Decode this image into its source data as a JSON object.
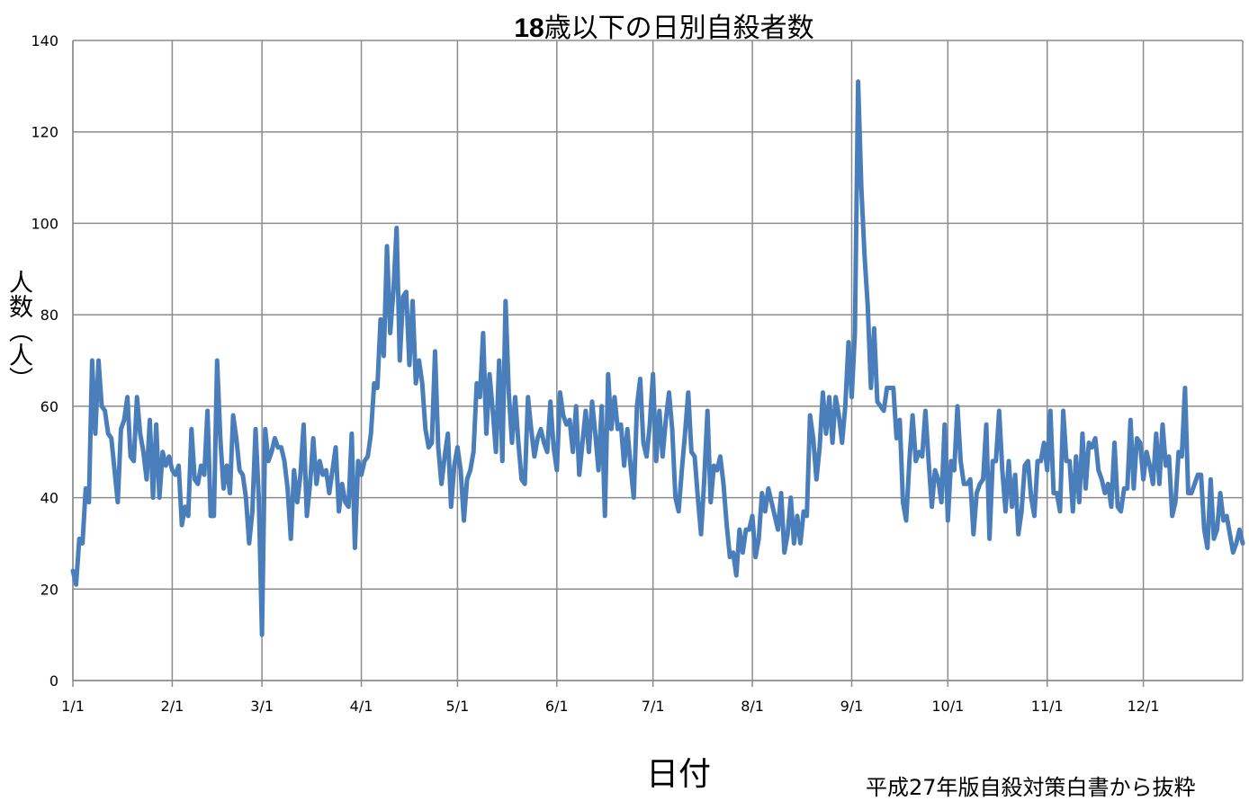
{
  "chart_data": {
    "type": "line",
    "title_number": "18",
    "title_text": "歳以下の日別自殺者数",
    "ylabel": "人数（人）",
    "xlabel": "日付",
    "ylim": [
      0,
      140
    ],
    "yticks": [
      0,
      20,
      40,
      60,
      80,
      100,
      120,
      140
    ],
    "xticks": [
      "1/1",
      "2/1",
      "3/1",
      "4/1",
      "5/1",
      "6/1",
      "7/1",
      "8/1",
      "9/1",
      "10/1",
      "11/1",
      "12/1"
    ],
    "grid": true,
    "line_color": "#4a7ebb",
    "series": [
      {
        "values": [
          24,
          21,
          31,
          30,
          42,
          39,
          70,
          54,
          70,
          60,
          59,
          54,
          53,
          46,
          39,
          55,
          57,
          62,
          49,
          48,
          62,
          54,
          50,
          44,
          57,
          40,
          56,
          40,
          50,
          47,
          49,
          46,
          45,
          47,
          34,
          38,
          36,
          55,
          44,
          43,
          47,
          45,
          59,
          36,
          36,
          70,
          53,
          42,
          47,
          41,
          58,
          53,
          46,
          45,
          40,
          30,
          37,
          55,
          40,
          10,
          55,
          48,
          50,
          53,
          51,
          51,
          48,
          42,
          31,
          46,
          39,
          45,
          56,
          36,
          43,
          53,
          43,
          48,
          45,
          46,
          41,
          46,
          51,
          37,
          43,
          39,
          38,
          54,
          29,
          48,
          45,
          48,
          49,
          54,
          65,
          64,
          79,
          71,
          95,
          76,
          85,
          99,
          70,
          84,
          85,
          69,
          83,
          65,
          70,
          65,
          55,
          51,
          52,
          72,
          51,
          43,
          49,
          54,
          38,
          47,
          51,
          46,
          35,
          44,
          46,
          50,
          65,
          62,
          76,
          54,
          67,
          59,
          50,
          70,
          48,
          83,
          63,
          52,
          62,
          52,
          44,
          43,
          62,
          55,
          49,
          53,
          55,
          52,
          50,
          61,
          51,
          46,
          63,
          58,
          56,
          57,
          50,
          60,
          45,
          52,
          59,
          50,
          61,
          54,
          46,
          60,
          36,
          67,
          55,
          62,
          55,
          56,
          47,
          55,
          47,
          40,
          60,
          66,
          52,
          49,
          56,
          67,
          48,
          59,
          49,
          57,
          63,
          55,
          40,
          37,
          46,
          54,
          63,
          50,
          49,
          40,
          32,
          44,
          59,
          39,
          47,
          46,
          49,
          43,
          34,
          27,
          28,
          23,
          33,
          28,
          33,
          33,
          36,
          27,
          31,
          41,
          37,
          42,
          39,
          36,
          33,
          41,
          28,
          32,
          40,
          30,
          36,
          30,
          37,
          36,
          58,
          53,
          44,
          51,
          63,
          54,
          62,
          52,
          62,
          58,
          52,
          60,
          74,
          62,
          76,
          131,
          108,
          93,
          82,
          64,
          77,
          61,
          60,
          59,
          64,
          64,
          64,
          53,
          57,
          39,
          35,
          48,
          58,
          48,
          50,
          49,
          59,
          48,
          38,
          46,
          44,
          39,
          56,
          35,
          48,
          46,
          60,
          48,
          43,
          43,
          44,
          32,
          41,
          43,
          44,
          56,
          31,
          48,
          48,
          59,
          46,
          37,
          48,
          38,
          45,
          32,
          37,
          47,
          48,
          40,
          36,
          48,
          48,
          52,
          46,
          59,
          41,
          41,
          37,
          59,
          48,
          48,
          37,
          49,
          39,
          54,
          42,
          52,
          51,
          53,
          46,
          44,
          41,
          43,
          38,
          52,
          38,
          37,
          42,
          42,
          57,
          42,
          53,
          52,
          44,
          50,
          47,
          43,
          54,
          43,
          56,
          47,
          49,
          36,
          39,
          50,
          49,
          64,
          41,
          41,
          43,
          45,
          45,
          33,
          29,
          44,
          31,
          33,
          41,
          35,
          36,
          32,
          28,
          30,
          33,
          30
        ]
      }
    ]
  },
  "source_note": "平成27年版自殺対策白書から抜粋"
}
